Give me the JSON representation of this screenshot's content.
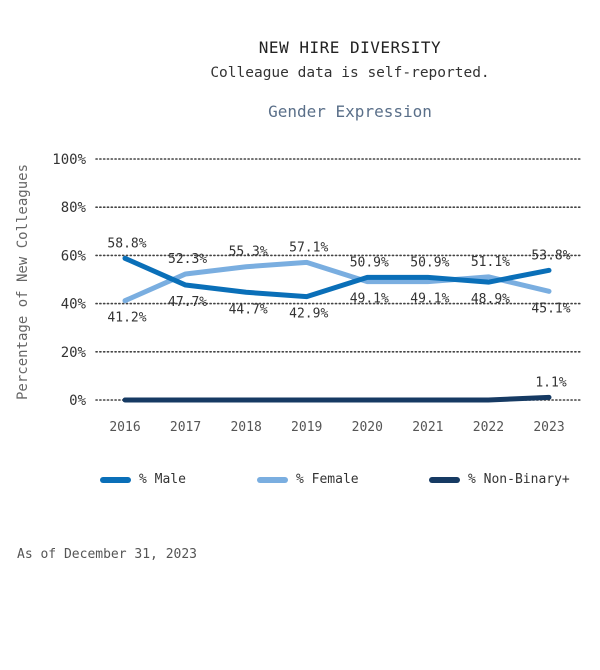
{
  "header": {
    "title": "NEW HIRE DIVERSITY",
    "subtitle": "Colleague data is self-reported.",
    "section": "Gender Expression"
  },
  "footnote": "As of December 31, 2023",
  "colors": {
    "male": "#0a6fb8",
    "female": "#7aaee0",
    "nonbinary": "#163a63",
    "grid": "#444444",
    "text": "#333333"
  },
  "chart_data": {
    "type": "line",
    "title": "Gender Expression",
    "xlabel": "",
    "ylabel": "Percentage of New Colleagues",
    "x": [
      "2016",
      "2017",
      "2018",
      "2019",
      "2020",
      "2021",
      "2022",
      "2023"
    ],
    "ylim": [
      0,
      100
    ],
    "yticks": [
      0,
      20,
      40,
      60,
      80,
      100
    ],
    "ytick_labels": [
      "0%",
      "20%",
      "40%",
      "60%",
      "80%",
      "100%"
    ],
    "grid": "horizontal-dotted",
    "legend_position": "bottom",
    "series": [
      {
        "key": "male",
        "name": "% Male",
        "values": [
          58.8,
          47.7,
          44.7,
          42.9,
          50.9,
          50.9,
          48.9,
          53.8
        ],
        "labels": [
          "58.8%",
          "47.7%",
          "44.7%",
          "42.9%",
          "50.9%",
          "50.9%",
          "48.9%",
          "53.8%"
        ],
        "label_pos": [
          "above",
          "below",
          "below",
          "below",
          "above",
          "above",
          "below",
          "above"
        ]
      },
      {
        "key": "female",
        "name": "% Female",
        "values": [
          41.2,
          52.3,
          55.3,
          57.1,
          49.1,
          49.1,
          51.1,
          45.1
        ],
        "labels": [
          "41.2%",
          "52.3%",
          "55.3%",
          "57.1%",
          "49.1%",
          "49.1%",
          "51.1%",
          "45.1%"
        ],
        "label_pos": [
          "below",
          "above",
          "above",
          "above",
          "below",
          "below",
          "above",
          "below"
        ]
      },
      {
        "key": "nonbinary",
        "name": "% Non-Binary+",
        "values": [
          0,
          0,
          0,
          0,
          0,
          0,
          0,
          1.1
        ],
        "labels": [
          null,
          null,
          null,
          null,
          null,
          null,
          null,
          "1.1%"
        ],
        "label_pos": [
          null,
          null,
          null,
          null,
          null,
          null,
          null,
          "above"
        ]
      }
    ]
  },
  "legend": [
    {
      "key": "male",
      "label": "% Male"
    },
    {
      "key": "female",
      "label": "% Female"
    },
    {
      "key": "nonbinary",
      "label": "% Non-Binary+"
    }
  ]
}
